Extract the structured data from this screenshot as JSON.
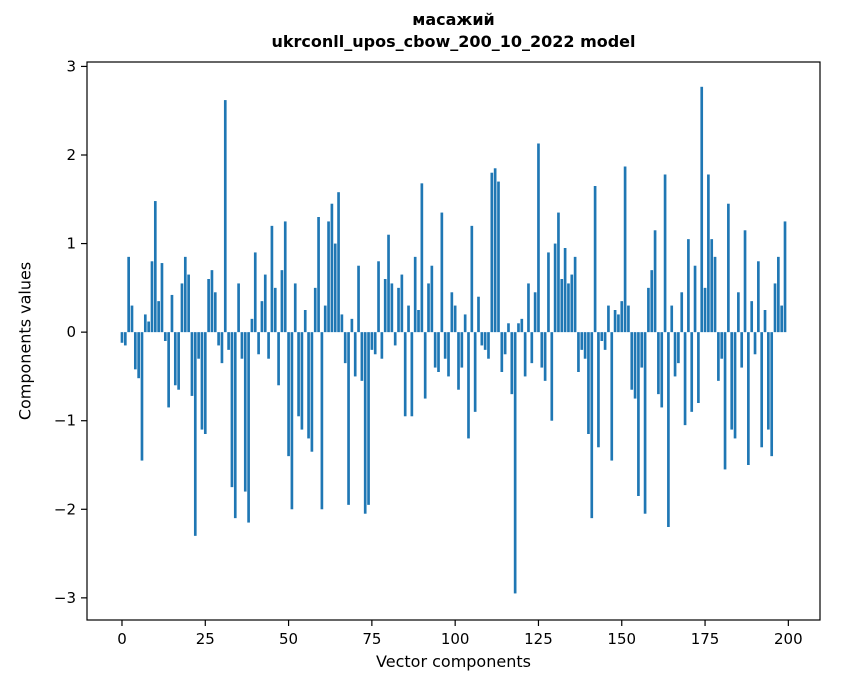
{
  "figure": {
    "background": "#ffffff"
  },
  "chart_data": {
    "type": "bar",
    "title": "масажий",
    "subtitle": "ukrconll_upos_cbow_200_10_2022 model",
    "xlabel": "Vector components",
    "ylabel": "Components values",
    "bar_color": "#1f77b4",
    "axis_color": "#000000",
    "n_components": 200,
    "xlim": [
      -10.5,
      209.5
    ],
    "ylim": [
      -3.25,
      3.05
    ],
    "xticks": [
      0,
      25,
      50,
      75,
      100,
      125,
      150,
      175,
      200
    ],
    "yticks": [
      -3,
      -2,
      -1,
      0,
      1,
      2,
      3
    ],
    "grid": false,
    "legend": "none",
    "values": [
      -0.12,
      -0.15,
      0.85,
      0.3,
      -0.42,
      -0.52,
      -1.45,
      0.2,
      0.12,
      0.8,
      1.48,
      0.35,
      0.78,
      -0.1,
      -0.85,
      0.42,
      -0.6,
      -0.65,
      0.55,
      0.85,
      0.65,
      -0.72,
      -2.3,
      -0.3,
      -1.1,
      -1.15,
      0.6,
      0.7,
      0.45,
      -0.15,
      -0.35,
      2.62,
      -0.2,
      -1.75,
      -2.1,
      0.55,
      -0.3,
      -1.8,
      -2.15,
      0.15,
      0.9,
      -0.25,
      0.35,
      0.65,
      -0.3,
      1.2,
      0.5,
      -0.6,
      0.7,
      1.25,
      -1.4,
      -2.0,
      0.55,
      -0.95,
      -1.1,
      0.25,
      -1.2,
      -1.35,
      0.5,
      1.3,
      -2.0,
      0.3,
      1.25,
      1.45,
      1.0,
      1.58,
      0.2,
      -0.35,
      -1.95,
      0.15,
      -0.5,
      0.75,
      -0.55,
      -2.05,
      -1.95,
      -0.2,
      -0.25,
      0.8,
      -0.3,
      0.6,
      1.1,
      0.55,
      -0.15,
      0.5,
      0.65,
      -0.95,
      0.3,
      -0.95,
      0.85,
      0.25,
      1.68,
      -0.75,
      0.55,
      0.75,
      -0.4,
      -0.45,
      1.35,
      -0.3,
      -0.5,
      0.45,
      0.3,
      -0.65,
      -0.4,
      0.2,
      -1.2,
      1.2,
      -0.9,
      0.4,
      -0.15,
      -0.2,
      -0.3,
      1.8,
      1.85,
      1.7,
      -0.45,
      -0.25,
      0.1,
      -0.7,
      -2.95,
      0.1,
      0.15,
      -0.5,
      0.55,
      -0.35,
      0.45,
      2.13,
      -0.4,
      -0.55,
      0.9,
      -1.0,
      1.0,
      1.35,
      0.6,
      0.95,
      0.55,
      0.65,
      0.85,
      -0.45,
      -0.2,
      -0.3,
      -1.15,
      -2.1,
      1.65,
      -1.3,
      -0.1,
      -0.2,
      0.3,
      -1.45,
      0.25,
      0.2,
      0.35,
      1.87,
      0.3,
      -0.65,
      -0.75,
      -1.85,
      -0.4,
      -2.05,
      0.5,
      0.7,
      1.15,
      -0.7,
      -0.85,
      1.78,
      -2.2,
      0.3,
      -0.5,
      -0.35,
      0.45,
      -1.05,
      1.05,
      -0.9,
      0.75,
      -0.8,
      2.77,
      0.5,
      1.78,
      1.05,
      0.85,
      -0.55,
      -0.3,
      -1.55,
      1.45,
      -1.1,
      -1.2,
      0.45,
      -0.4,
      1.15,
      -1.5,
      0.35,
      -0.25,
      0.8,
      -1.3,
      0.25,
      -1.1,
      -1.4,
      0.55,
      0.85,
      0.3,
      1.25
    ]
  }
}
